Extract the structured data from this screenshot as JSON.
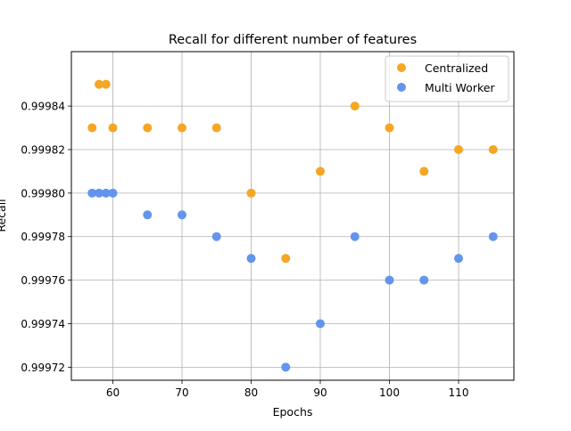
{
  "chart_data": {
    "type": "scatter",
    "title": "Recall for different number of features",
    "xlabel": "Epochs",
    "ylabel": "Recall",
    "xlim": [
      54,
      118
    ],
    "ylim": [
      0.999714,
      0.999865
    ],
    "xticks": [
      60,
      70,
      80,
      90,
      100,
      110
    ],
    "xtick_labels": [
      "60",
      "70",
      "80",
      "90",
      "100",
      "110"
    ],
    "yticks": [
      0.99972,
      0.99974,
      0.99976,
      0.99978,
      0.9998,
      0.99982,
      0.99984
    ],
    "ytick_labels": [
      "0.99972",
      "0.99974",
      "0.99976",
      "0.99978",
      "0.99980",
      "0.99982",
      "0.99984"
    ],
    "grid": true,
    "legend_position": "top-right",
    "series": [
      {
        "name": "Centralized",
        "color": "#f5a623",
        "x": [
          57,
          58,
          59,
          60,
          65,
          70,
          75,
          80,
          85,
          90,
          95,
          100,
          105,
          110,
          115
        ],
        "y": [
          0.99983,
          0.99985,
          0.99985,
          0.99983,
          0.99983,
          0.99983,
          0.99983,
          0.9998,
          0.99977,
          0.99981,
          0.99984,
          0.99983,
          0.99981,
          0.99982,
          0.99982
        ]
      },
      {
        "name": "Multi Worker",
        "color": "#6495ed",
        "x": [
          57,
          58,
          59,
          60,
          65,
          70,
          75,
          80,
          85,
          90,
          95,
          100,
          105,
          110,
          115
        ],
        "y": [
          0.9998,
          0.9998,
          0.9998,
          0.9998,
          0.99979,
          0.99979,
          0.99978,
          0.99977,
          0.99972,
          0.99974,
          0.99978,
          0.99976,
          0.99976,
          0.99977,
          0.99978
        ]
      }
    ]
  }
}
